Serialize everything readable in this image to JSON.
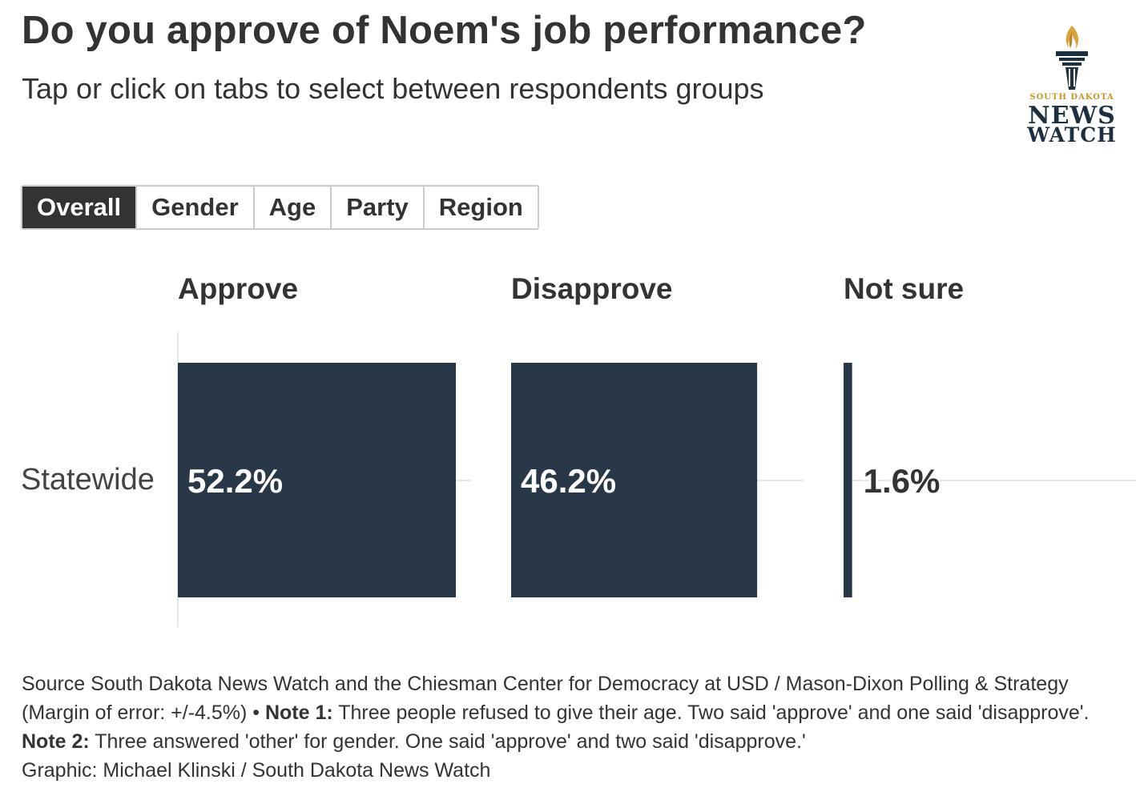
{
  "title": "Do you approve of Noem's job performance?",
  "subtitle": "Tap or click on tabs to select between respondents groups",
  "logo": {
    "line1": "SOUTH DAKOTA",
    "line2": "NEWS",
    "line3": "WATCH"
  },
  "tabs": [
    {
      "label": "Overall",
      "active": true
    },
    {
      "label": "Gender",
      "active": false
    },
    {
      "label": "Age",
      "active": false
    },
    {
      "label": "Party",
      "active": false
    },
    {
      "label": "Region",
      "active": false
    }
  ],
  "chart_data": {
    "type": "bar",
    "orientation": "horizontal",
    "layout": "small-multiples",
    "categories": [
      "Statewide"
    ],
    "series": [
      {
        "name": "Approve",
        "values": [
          52.2
        ],
        "labels": [
          "52.2%"
        ]
      },
      {
        "name": "Disapprove",
        "values": [
          46.2
        ],
        "labels": [
          "46.2%"
        ]
      },
      {
        "name": "Not sure",
        "values": [
          1.6
        ],
        "labels": [
          "1.6%"
        ]
      }
    ],
    "unit": "%",
    "xlim": [
      0,
      52.2
    ],
    "grid": false,
    "colors": {
      "bar": "#293848",
      "label_inside": "#ffffff",
      "label_outside": "#333333",
      "axis": "#e6e6e6"
    }
  },
  "footer": {
    "line1": "Source South Dakota News Watch and the Chiesman Center for Democracy at USD / Mason-Dixon Polling & Strategy",
    "line2_pre": "(Margin of error: +/-4.5%) • ",
    "note1_label": "Note 1:",
    "note1_text": " Three people refused to give their age. Two said 'approve' and one said 'disapprove'.",
    "note2_label": "Note 2:",
    "note2_text": " Three answered 'other' for gender. One said 'approve' and two said 'disapprove.'",
    "credit": "Graphic: Michael Klinski / South Dakota News Watch"
  }
}
